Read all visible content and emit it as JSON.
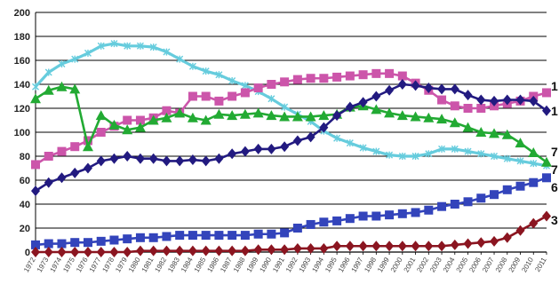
{
  "chart_data": {
    "type": "line",
    "title": "",
    "xlabel": "",
    "ylabel": "",
    "ylim": [
      0,
      200
    ],
    "yticks": [
      0,
      20,
      40,
      60,
      80,
      100,
      120,
      140,
      160,
      180,
      200
    ],
    "grid": true,
    "legend": "none",
    "x": [
      1972,
      1973,
      1974,
      1975,
      1976,
      1977,
      1978,
      1979,
      1980,
      1981,
      1982,
      1983,
      1984,
      1985,
      1986,
      1987,
      1988,
      1989,
      1990,
      1991,
      1992,
      1993,
      1994,
      1995,
      1996,
      1997,
      1998,
      1999,
      2000,
      2001,
      2002,
      2003,
      2004,
      2005,
      2006,
      2007,
      2008,
      2009,
      2010,
      2011
    ],
    "series": [
      {
        "color": "#66ccdd",
        "marker": "x",
        "values": [
          138,
          150,
          157,
          161,
          166,
          172,
          174,
          172,
          172,
          171,
          167,
          161,
          155,
          151,
          148,
          143,
          139,
          134,
          128,
          121,
          115,
          109,
          101,
          95,
          91,
          87,
          84,
          81,
          80,
          80,
          82,
          86,
          86,
          84,
          82,
          80,
          78,
          76,
          74,
          72
        ]
      },
      {
        "color": "#cc55aa",
        "marker": "square",
        "values": [
          73,
          80,
          84,
          88,
          93,
          100,
          105,
          110,
          110,
          112,
          118,
          116,
          130,
          130,
          126,
          130,
          133,
          137,
          140,
          142,
          144,
          145,
          145,
          146,
          147,
          148,
          149,
          149,
          147,
          141,
          135,
          127,
          122,
          120,
          120,
          122,
          124,
          126,
          130,
          133
        ]
      },
      {
        "color": "#22aa33",
        "marker": "triangle",
        "values": [
          128,
          135,
          138,
          136,
          88,
          114,
          106,
          102,
          104,
          110,
          112,
          116,
          112,
          110,
          115,
          114,
          115,
          116,
          114,
          113,
          113,
          113,
          114,
          115,
          121,
          122,
          119,
          116,
          114,
          113,
          112,
          111,
          108,
          104,
          100,
          99,
          98,
          91,
          83,
          75
        ]
      },
      {
        "color": "#221a80",
        "marker": "diamond",
        "values": [
          51,
          58,
          62,
          66,
          70,
          76,
          78,
          80,
          78,
          78,
          76,
          76,
          77,
          76,
          78,
          82,
          84,
          86,
          86,
          88,
          93,
          96,
          104,
          114,
          121,
          125,
          130,
          135,
          140,
          139,
          137,
          136,
          136,
          131,
          127,
          126,
          127,
          127,
          126,
          118
        ]
      },
      {
        "color": "#3344bb",
        "marker": "square",
        "values": [
          6,
          7,
          7,
          8,
          8,
          9,
          10,
          11,
          12,
          12,
          13,
          14,
          14,
          14,
          14,
          14,
          14,
          15,
          15,
          16,
          20,
          23,
          25,
          26,
          28,
          30,
          30,
          31,
          32,
          33,
          35,
          38,
          40,
          42,
          45,
          48,
          52,
          55,
          58,
          62
        ]
      },
      {
        "color": "#8b1520",
        "marker": "circle",
        "values": [
          0,
          0,
          0,
          0,
          0,
          0,
          0,
          0,
          1,
          1,
          1,
          1,
          1,
          1,
          1,
          1,
          1,
          2,
          2,
          2,
          3,
          3,
          3,
          5,
          5,
          5,
          5,
          5,
          5,
          5,
          5,
          5,
          6,
          7,
          8,
          9,
          12,
          18,
          24,
          30
        ]
      }
    ],
    "right_labels": [
      "1",
      "1",
      "7",
      "7",
      "6",
      "3"
    ]
  }
}
